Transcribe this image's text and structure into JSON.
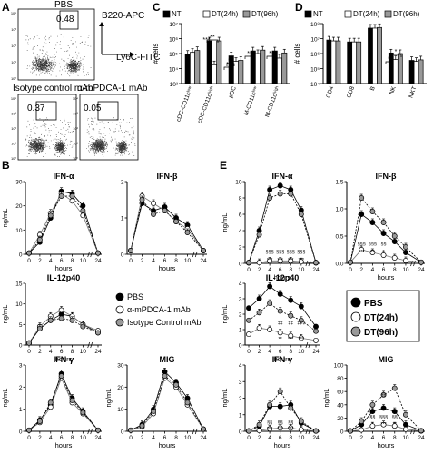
{
  "panels": {
    "A": {
      "letter": "A",
      "plot_titles": [
        "PBS",
        "Isotype control mAb",
        "α-mPDCA-1 mAb"
      ],
      "gate_pcts": [
        "0.48",
        "0.37",
        "0.05"
      ],
      "y_axis_label": "B220-APC",
      "x_axis_label": "Ly6C-FITC",
      "tick_labels": [
        "10⁴",
        "10³",
        "10²",
        "10¹",
        "10⁰"
      ]
    },
    "C": {
      "letter": "C",
      "legend": [
        "NT",
        "DT(24h)",
        "DT(96h)"
      ],
      "ylabel": "# cells",
      "yticks": [
        "10⁷",
        "10⁶",
        "10⁵",
        "10⁴",
        "10³"
      ],
      "categories": [
        "cDC-CD11cˡᵒʷ",
        "cDC-CD11cʰⁱᵍʰ",
        "pDC",
        "M-CD11cˡᵒʷ",
        "M-CD11cʰⁱᵍʰ"
      ],
      "sig": [
        "***",
        "**",
        "*",
        "**",
        "**",
        "**"
      ]
    },
    "D": {
      "letter": "D",
      "legend": [
        "NT",
        "DT(24h)",
        "DT(96h)"
      ],
      "ylabel": "# cells",
      "yticks": [
        "10⁸",
        "10⁷",
        "10⁶",
        "10⁵",
        "10⁴"
      ],
      "categories": [
        "CD4",
        "CD8",
        "B",
        "NK",
        "NKT"
      ],
      "sig": [
        "*",
        "*"
      ]
    },
    "B": {
      "letter": "B",
      "ylabel": "ng/mL",
      "xlabel": "hours",
      "xticks": [
        "0",
        "2",
        "4",
        "6",
        "8",
        "10",
        "24"
      ],
      "titles": [
        "IFN-α",
        "IFN-β",
        "IL-12p40",
        "IFN-γ",
        "MIG"
      ],
      "yticks": {
        "ifna": [
          "30",
          "20",
          "10",
          "0"
        ],
        "ifnb": [
          "2",
          "1",
          "0"
        ],
        "il12": [
          "15",
          "10",
          "5",
          "0"
        ],
        "ifng": [
          "3",
          "2",
          "1",
          "0"
        ],
        "mig": [
          "30",
          "20",
          "10",
          "0"
        ]
      },
      "legend": [
        "PBS",
        "α-mPDCA-1 mAb",
        "Isotype Control mAb"
      ]
    },
    "E": {
      "letter": "E",
      "ylabel": "ng/mL",
      "xlabel": "hours",
      "xticks": [
        "0",
        "2",
        "4",
        "6",
        "8",
        "10",
        "24"
      ],
      "titles": [
        "IFN-α",
        "IFN-β",
        "IL-12p40",
        "IFN-γ",
        "MIG"
      ],
      "yticks": {
        "ifna": [
          "10",
          "8",
          "6",
          "4",
          "2",
          "0"
        ],
        "ifnb": [
          "1.5",
          "1.0",
          "0.5",
          "0.0"
        ],
        "il12": [
          "4",
          "3",
          "2",
          "1",
          "0"
        ],
        "ifng": [
          "4",
          "3",
          "2",
          "1",
          "0"
        ],
        "mig": [
          "100",
          "80",
          "60",
          "40",
          "20",
          "0"
        ]
      },
      "legend": [
        "PBS",
        "DT(24h)",
        "DT(96h)"
      ],
      "sig": {
        "ifna_dd": [
          "§§§",
          "§§§",
          "§§§",
          "§§§"
        ],
        "ifna_star": [
          "***",
          "***",
          "***",
          "***"
        ],
        "ifnb_dd": [
          "§§§",
          "§§§",
          "§§"
        ],
        "ifnb_star": [
          "***",
          "**",
          "*"
        ],
        "il12_hash": [
          "‡‡",
          "‡‡",
          "‡‡‡"
        ],
        "il12_star": [
          "**",
          "***",
          "***"
        ],
        "ifng_dd": [
          "§§",
          "§§",
          "§§"
        ],
        "ifng_star": [
          "***",
          "***",
          "***"
        ],
        "mig_hash": [
          "‡‡"
        ],
        "mig_dd": [
          "§§",
          "§§§",
          "§§"
        ],
        "mig_star": [
          "*",
          "***",
          "**"
        ]
      }
    }
  },
  "chart_data": [
    {
      "type": "bar",
      "panel": "C",
      "log_scale": true,
      "ylim": [
        1000,
        10000000
      ],
      "categories": [
        "cDC-CD11c low",
        "cDC-CD11c high",
        "pDC",
        "M-CD11c low",
        "M-CD11c high"
      ],
      "series": [
        {
          "name": "NT",
          "values": [
            90000,
            700000,
            70000,
            150000,
            150000
          ]
        },
        {
          "name": "DT(24h)",
          "values": [
            120000,
            18000,
            30000,
            100000,
            50000
          ]
        },
        {
          "name": "DT(96h)",
          "values": [
            160000,
            700000,
            35000,
            170000,
            110000
          ]
        }
      ]
    },
    {
      "type": "bar",
      "panel": "D",
      "log_scale": true,
      "ylim": [
        10000,
        100000000
      ],
      "categories": [
        "CD4",
        "CD8",
        "B",
        "NK",
        "NKT"
      ],
      "series": [
        {
          "name": "NT",
          "values": [
            8000000,
            6000000,
            50000000,
            1100000,
            350000
          ]
        },
        {
          "name": "DT(24h)",
          "values": [
            7000000,
            6000000,
            50000000,
            400000,
            300000
          ]
        },
        {
          "name": "DT(96h)",
          "values": [
            7000000,
            6000000,
            55000000,
            1000000,
            380000
          ]
        }
      ]
    },
    {
      "type": "line",
      "panel": "B",
      "title": "IFN-α",
      "xlabel": "hours",
      "ylabel": "ng/mL",
      "ylim": [
        0,
        30
      ],
      "x": [
        0,
        2,
        4,
        6,
        8,
        10,
        24
      ],
      "series": [
        {
          "name": "PBS",
          "values": [
            0.5,
            5,
            15,
            26,
            25,
            20,
            0.5
          ]
        },
        {
          "name": "α-mPDCA-1 mAb",
          "values": [
            0.5,
            8,
            17,
            25,
            22,
            16,
            0.5
          ]
        },
        {
          "name": "Isotype Control mAb",
          "values": [
            0.5,
            6,
            16,
            24,
            24,
            18,
            0.5
          ]
        }
      ]
    },
    {
      "type": "line",
      "panel": "B",
      "title": "IFN-β",
      "xlabel": "hours",
      "ylabel": "ng/mL",
      "ylim": [
        0,
        2
      ],
      "x": [
        0,
        2,
        4,
        6,
        8,
        10,
        24
      ],
      "series": [
        {
          "name": "PBS",
          "values": [
            0.1,
            1.4,
            1.2,
            1.3,
            1.0,
            0.8,
            0.1
          ]
        },
        {
          "name": "α-mPDCA-1 mAb",
          "values": [
            0.1,
            1.6,
            1.4,
            1.2,
            0.9,
            0.7,
            0.1
          ]
        },
        {
          "name": "Isotype Control mAb",
          "values": [
            0.1,
            1.5,
            1.1,
            1.2,
            0.9,
            0.6,
            0.1
          ]
        }
      ]
    },
    {
      "type": "line",
      "panel": "B",
      "title": "IL-12p40",
      "xlabel": "hours",
      "ylabel": "ng/mL",
      "ylim": [
        0,
        15
      ],
      "x": [
        0,
        2,
        4,
        6,
        8,
        10,
        24
      ],
      "series": [
        {
          "name": "PBS",
          "values": [
            0.5,
            4,
            6,
            7.5,
            7,
            5,
            3
          ]
        },
        {
          "name": "α-mPDCA-1 mAb",
          "values": [
            0.5,
            4.5,
            7,
            8.5,
            7,
            5,
            3.5
          ]
        },
        {
          "name": "Isotype Control mAb",
          "values": [
            0.5,
            4,
            6,
            6.5,
            6,
            4.5,
            3
          ]
        }
      ]
    },
    {
      "type": "line",
      "panel": "B",
      "title": "IFN-γ",
      "xlabel": "hours",
      "ylabel": "ng/mL",
      "ylim": [
        0,
        3
      ],
      "x": [
        0,
        2,
        4,
        6,
        8,
        10,
        24
      ],
      "series": [
        {
          "name": "PBS",
          "values": [
            0.05,
            0.5,
            1.2,
            2.6,
            1.5,
            0.9,
            0.05
          ]
        },
        {
          "name": "α-mPDCA-1 mAb",
          "values": [
            0.05,
            0.4,
            1.1,
            2.4,
            1.3,
            0.8,
            0.05
          ]
        },
        {
          "name": "Isotype Control mAb",
          "values": [
            0.05,
            0.45,
            1.3,
            2.5,
            1.4,
            0.85,
            0.05
          ]
        }
      ]
    },
    {
      "type": "line",
      "panel": "B",
      "title": "MIG",
      "xlabel": "hours",
      "ylabel": "ng/mL",
      "ylim": [
        0,
        30
      ],
      "x": [
        0,
        2,
        4,
        6,
        8,
        10,
        24
      ],
      "series": [
        {
          "name": "PBS",
          "values": [
            0.5,
            3,
            10,
            27,
            22,
            15,
            1
          ]
        },
        {
          "name": "α-mPDCA-1 mAb",
          "values": [
            0.5,
            2,
            8,
            24,
            20,
            12,
            1
          ]
        },
        {
          "name": "Isotype Control mAb",
          "values": [
            0.5,
            2.5,
            9,
            25,
            21,
            13,
            1
          ]
        }
      ]
    },
    {
      "type": "line",
      "panel": "E",
      "title": "IFN-α",
      "xlabel": "hours",
      "ylabel": "ng/mL",
      "ylim": [
        0,
        10
      ],
      "x": [
        0,
        2,
        4,
        6,
        8,
        10,
        24
      ],
      "series": [
        {
          "name": "PBS",
          "values": [
            0.1,
            4,
            9,
            9.5,
            9,
            6.5,
            0.1
          ]
        },
        {
          "name": "DT(24h)",
          "values": [
            0.05,
            0.1,
            0.3,
            0.3,
            0.3,
            0.2,
            0.05
          ]
        },
        {
          "name": "DT(96h)",
          "values": [
            0.1,
            3.5,
            8,
            8.5,
            8.5,
            6,
            0.1
          ]
        }
      ]
    },
    {
      "type": "line",
      "panel": "E",
      "title": "IFN-β",
      "xlabel": "hours",
      "ylabel": "ng/mL",
      "ylim": [
        0,
        1.5
      ],
      "x": [
        0,
        2,
        4,
        6,
        8,
        10,
        24
      ],
      "series": [
        {
          "name": "PBS",
          "values": [
            0.02,
            0.9,
            0.75,
            0.55,
            0.4,
            0.2,
            0.02
          ]
        },
        {
          "name": "DT(24h)",
          "values": [
            0.02,
            0.25,
            0.2,
            0.15,
            0.1,
            0.05,
            0.02
          ]
        },
        {
          "name": "DT(96h)",
          "values": [
            0.02,
            1.2,
            0.95,
            0.75,
            0.5,
            0.3,
            0.02
          ]
        }
      ]
    },
    {
      "type": "line",
      "panel": "E",
      "title": "IL-12p40",
      "xlabel": "hours",
      "ylabel": "ng/mL",
      "ylim": [
        0,
        4
      ],
      "x": [
        0,
        2,
        4,
        6,
        8,
        10,
        24
      ],
      "series": [
        {
          "name": "PBS",
          "values": [
            2.4,
            3,
            3.8,
            3.3,
            2.9,
            2.5,
            1.2
          ]
        },
        {
          "name": "DT(24h)",
          "values": [
            0.7,
            1.1,
            1.0,
            0.8,
            0.6,
            0.45,
            0.3
          ]
        },
        {
          "name": "DT(96h)",
          "values": [
            1.6,
            2.1,
            2.7,
            2.2,
            1.9,
            1.6,
            0.9
          ]
        }
      ]
    },
    {
      "type": "line",
      "panel": "E",
      "title": "IFN-γ",
      "xlabel": "hours",
      "ylabel": "ng/mL",
      "ylim": [
        0,
        4
      ],
      "x": [
        0,
        2,
        4,
        6,
        8,
        10,
        24
      ],
      "series": [
        {
          "name": "PBS",
          "values": [
            0.02,
            0.3,
            1.5,
            1.5,
            1.6,
            0.5,
            0.02
          ]
        },
        {
          "name": "DT(24h)",
          "values": [
            0.02,
            0.05,
            0.15,
            0.2,
            0.2,
            0.1,
            0.02
          ]
        },
        {
          "name": "DT(96h)",
          "values": [
            0.02,
            0.4,
            1.6,
            2.4,
            1.4,
            0.6,
            0.02
          ]
        }
      ]
    },
    {
      "type": "line",
      "panel": "E",
      "title": "MIG",
      "xlabel": "hours",
      "ylabel": "ng/mL",
      "ylim": [
        0,
        100
      ],
      "x": [
        0,
        2,
        4,
        6,
        8,
        10,
        24
      ],
      "series": [
        {
          "name": "PBS",
          "values": [
            0.5,
            10,
            30,
            35,
            30,
            10,
            1
          ]
        },
        {
          "name": "DT(24h)",
          "values": [
            0.5,
            2,
            8,
            10,
            8,
            3,
            0.5
          ]
        },
        {
          "name": "DT(96h)",
          "values": [
            0.5,
            15,
            40,
            55,
            65,
            25,
            1
          ]
        }
      ]
    }
  ]
}
